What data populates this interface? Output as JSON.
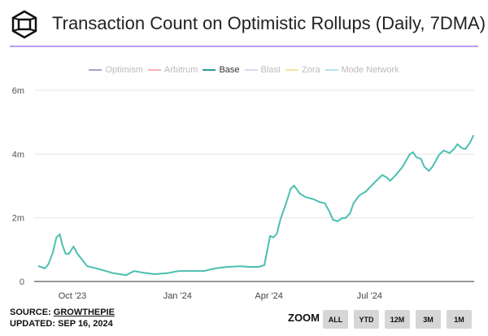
{
  "header": {
    "title": "Transaction Count on Optimistic Rollups (Daily, 7DMA)",
    "logo": "cube-logo"
  },
  "legend": [
    {
      "label": "Optimism",
      "color": "#a9a3c4",
      "active": false
    },
    {
      "label": "Arbitrum",
      "color": "#f2b3b8",
      "active": false
    },
    {
      "label": "Base",
      "color": "#2a9d8f",
      "active": true
    },
    {
      "label": "Blast",
      "color": "#dcd8f2",
      "active": false
    },
    {
      "label": "Zora",
      "color": "#f7e2a6",
      "active": false
    },
    {
      "label": "Mode Network",
      "color": "#b3e4f0",
      "active": false
    }
  ],
  "footer": {
    "source_prefix": "SOURCE: ",
    "source_link": "GROWTHEPIE",
    "updated": "UPDATED: SEP 16, 2024"
  },
  "zoom": {
    "label": "ZOOM",
    "buttons": [
      "ALL",
      "YTD",
      "12M",
      "3M",
      "1M"
    ]
  },
  "chart_data": {
    "type": "line",
    "title": "Transaction Count on Optimistic Rollups (Daily, 7DMA)",
    "xlabel": "",
    "ylabel": "",
    "ylim": [
      0,
      6000000
    ],
    "y_ticks": [
      "0",
      "2m",
      "4m",
      "6m"
    ],
    "x_ticks": [
      "Oct '23",
      "Jan '24",
      "Apr '24",
      "Jul '24"
    ],
    "grid": true,
    "legend_position": "top",
    "series": [
      {
        "name": "Base",
        "color": "#4cbfb0",
        "unit": "millions",
        "points": [
          [
            "2023-09-01",
            0.49
          ],
          [
            "2023-09-07",
            0.41
          ],
          [
            "2023-09-10",
            0.54
          ],
          [
            "2023-09-14",
            0.92
          ],
          [
            "2023-09-17",
            1.38
          ],
          [
            "2023-09-20",
            1.48
          ],
          [
            "2023-09-22",
            1.17
          ],
          [
            "2023-09-25",
            0.87
          ],
          [
            "2023-09-28",
            0.87
          ],
          [
            "2023-10-02",
            1.1
          ],
          [
            "2023-10-05",
            0.89
          ],
          [
            "2023-10-09",
            0.71
          ],
          [
            "2023-10-14",
            0.48
          ],
          [
            "2023-10-20",
            0.43
          ],
          [
            "2023-10-27",
            0.36
          ],
          [
            "2023-11-06",
            0.26
          ],
          [
            "2023-11-17",
            0.2
          ],
          [
            "2023-11-24",
            0.33
          ],
          [
            "2023-12-01",
            0.28
          ],
          [
            "2023-12-12",
            0.23
          ],
          [
            "2023-12-23",
            0.26
          ],
          [
            "2024-01-02",
            0.33
          ],
          [
            "2024-01-13",
            0.33
          ],
          [
            "2024-01-24",
            0.33
          ],
          [
            "2024-02-03",
            0.41
          ],
          [
            "2024-02-14",
            0.46
          ],
          [
            "2024-02-25",
            0.48
          ],
          [
            "2024-03-03",
            0.46
          ],
          [
            "2024-03-12",
            0.46
          ],
          [
            "2024-03-17",
            0.51
          ],
          [
            "2024-03-22",
            1.43
          ],
          [
            "2024-03-25",
            1.38
          ],
          [
            "2024-03-28",
            1.51
          ],
          [
            "2024-03-31",
            1.94
          ],
          [
            "2024-04-05",
            2.45
          ],
          [
            "2024-04-09",
            2.91
          ],
          [
            "2024-04-12",
            3.01
          ],
          [
            "2024-04-17",
            2.76
          ],
          [
            "2024-04-22",
            2.65
          ],
          [
            "2024-04-29",
            2.58
          ],
          [
            "2024-05-04",
            2.5
          ],
          [
            "2024-05-09",
            2.45
          ],
          [
            "2024-05-13",
            2.19
          ],
          [
            "2024-05-16",
            1.94
          ],
          [
            "2024-05-20",
            1.89
          ],
          [
            "2024-05-24",
            1.99
          ],
          [
            "2024-05-27",
            1.99
          ],
          [
            "2024-05-31",
            2.14
          ],
          [
            "2024-06-03",
            2.45
          ],
          [
            "2024-06-08",
            2.7
          ],
          [
            "2024-06-14",
            2.83
          ],
          [
            "2024-06-21",
            3.09
          ],
          [
            "2024-06-28",
            3.34
          ],
          [
            "2024-07-02",
            3.27
          ],
          [
            "2024-07-05",
            3.16
          ],
          [
            "2024-07-10",
            3.34
          ],
          [
            "2024-07-16",
            3.6
          ],
          [
            "2024-07-22",
            3.98
          ],
          [
            "2024-07-25",
            4.06
          ],
          [
            "2024-07-28",
            3.9
          ],
          [
            "2024-08-01",
            3.85
          ],
          [
            "2024-08-04",
            3.6
          ],
          [
            "2024-08-08",
            3.47
          ],
          [
            "2024-08-11",
            3.6
          ],
          [
            "2024-08-17",
            3.98
          ],
          [
            "2024-08-21",
            4.11
          ],
          [
            "2024-08-26",
            4.03
          ],
          [
            "2024-08-30",
            4.16
          ],
          [
            "2024-09-02",
            4.31
          ],
          [
            "2024-09-06",
            4.18
          ],
          [
            "2024-09-09",
            4.16
          ],
          [
            "2024-09-13",
            4.36
          ],
          [
            "2024-09-16",
            4.59
          ]
        ]
      }
    ]
  }
}
